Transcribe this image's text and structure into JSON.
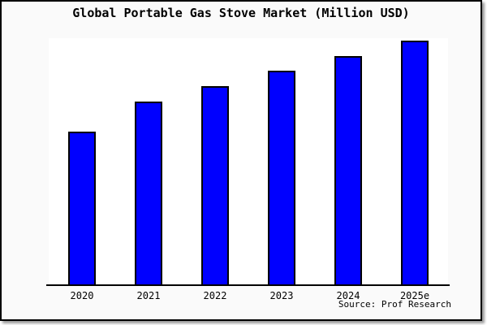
{
  "header": {
    "title": "Global Portable Gas Stove Market (Million USD)"
  },
  "footer": {
    "source": "Source: Prof Research"
  },
  "colors": {
    "bar_fill": "#0000ff",
    "bar_border": "#000000",
    "frame_background": "#fafafa",
    "plot_background": "#ffffff",
    "axis": "#000000",
    "text": "#000000"
  },
  "chart_data": {
    "type": "bar",
    "title": "Global Portable Gas Stove Market (Million USD)",
    "categories": [
      "2020",
      "2021",
      "2022",
      "2023",
      "2024",
      "2025e"
    ],
    "values": [
      62.7,
      75.1,
      81.5,
      87.7,
      93.8,
      100
    ],
    "value_scale": "relative index, no y-axis tick labels shown in chart; values normalized so 2025e = 100",
    "xlabel": "",
    "ylabel": "",
    "ylim": [
      0,
      101
    ],
    "y_axis_visible": false,
    "gridlines": false,
    "legend": false,
    "bar_count": 6,
    "source": "Source: Prof Research"
  }
}
